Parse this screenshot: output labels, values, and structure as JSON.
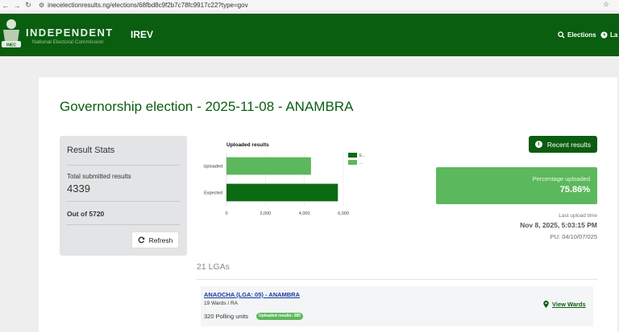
{
  "browser": {
    "url": "inecelectionresults.ng/elections/68fbd8c9f2b7c78fc9917c22?type=gov",
    "icons": [
      "back-arrow-icon",
      "forward-arrow-icon",
      "reload-icon",
      "site-settings-icon",
      "star-icon"
    ]
  },
  "header": {
    "brand_title": "INDEPENDENT",
    "brand_subtitle": "National Electoral Commission",
    "logo_text": "INEC",
    "app_name": "IREV",
    "nav": [
      {
        "label": "Elections",
        "icon": "search-icon"
      },
      {
        "label": "La",
        "icon": "clock-icon"
      }
    ],
    "color": "#0a5e10"
  },
  "page_title": "Governorship election - 2025-11-08 - ANAMBRA",
  "stats": {
    "title": "Result Stats",
    "submitted_label": "Total submitted results",
    "submitted_value": "4339",
    "out_of": "Out of 5720",
    "refresh_label": "Refresh"
  },
  "chart_data": {
    "type": "bar",
    "orientation": "horizontal",
    "title": "Uploaded results",
    "categories": [
      "Uploaded",
      "Expected"
    ],
    "values": [
      4339,
      5720
    ],
    "colors": [
      "#5cb85c",
      "#0b6b12"
    ],
    "xlim": [
      0,
      6000
    ],
    "xticks": [
      "0",
      "2,000",
      "4,000",
      "6,000"
    ],
    "legend": [
      "E...",
      "..."
    ],
    "legend_placement": "right"
  },
  "recent_button": {
    "label": "Recent results",
    "icon": "info-icon"
  },
  "percentage": {
    "label": "Percentage uploaded",
    "value": "75.86%"
  },
  "last_upload": {
    "label": "Last upload time",
    "value": "Nov 8, 2025, 5:03:15 PM",
    "pu": "PU: 04/10/07/025"
  },
  "lgas": {
    "count_label": "21 LGAs",
    "items": [
      {
        "name": "ANAOCHA (LGA: 05) - ANAMBRA",
        "wards": "19 Wards / RA",
        "polling_units": "320 Polling units",
        "badge": "Uploaded results: 285",
        "action": "View Wards",
        "action_icon": "map-pin-icon"
      }
    ]
  },
  "colors": {
    "primary": "#0b5d12",
    "success": "#5cb85c"
  }
}
